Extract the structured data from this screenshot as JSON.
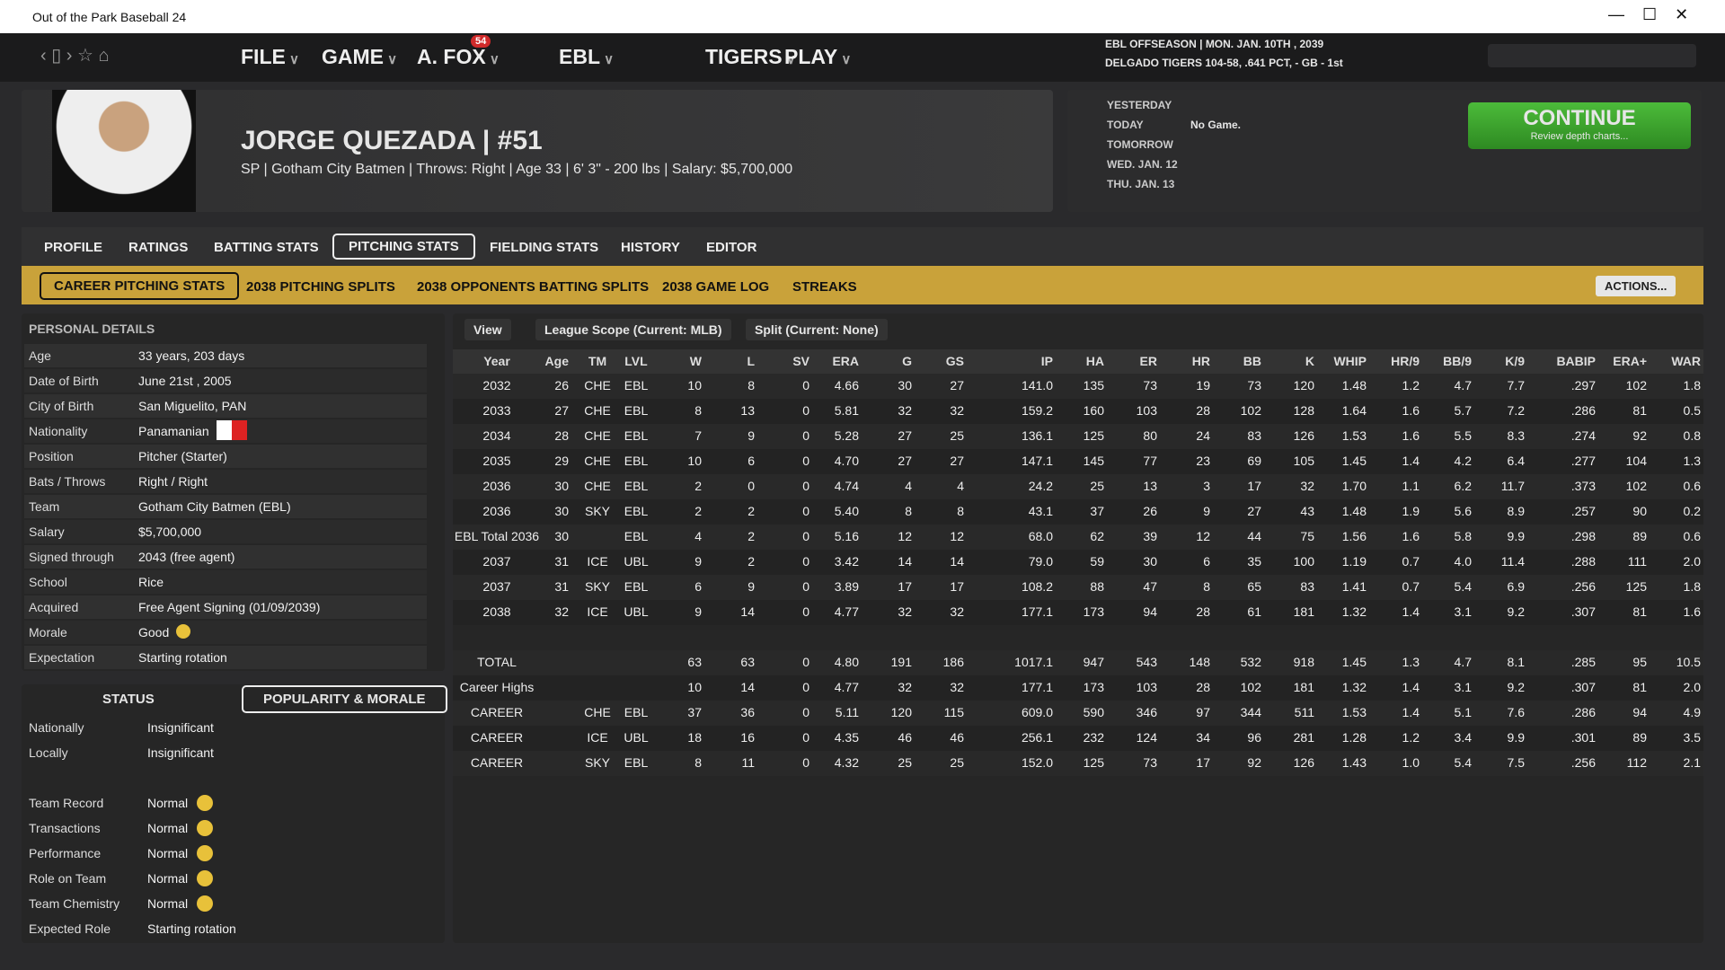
{
  "window": {
    "title": "Out of the Park Baseball 24"
  },
  "nav": {
    "menus": [
      "FILE",
      "GAME",
      "A. FOX",
      "EBL",
      "TIGERS",
      "PLAY"
    ],
    "badge": "54",
    "status_line1": "EBL OFFSEASON  |  MON. JAN. 10TH , 2039",
    "status_line2": "DELGADO TIGERS  104-58, .641 PCT, - GB - 1st"
  },
  "player": {
    "name": "JORGE QUEZADA  |  #51",
    "info": "SP | Gotham City Batmen  |  Throws: Right  |  Age 33  |  6' 3\" - 200 lbs  |  Salary: $5,700,000"
  },
  "schedule": {
    "days": [
      {
        "day": "YESTERDAY"
      },
      {
        "day": "TODAY",
        "note": "No Game."
      },
      {
        "day": "TOMORROW"
      },
      {
        "day": "WED. JAN. 12"
      },
      {
        "day": "THU. JAN. 13"
      }
    ],
    "continue": "CONTINUE",
    "continue_sub": "Review depth charts..."
  },
  "tabs": [
    "PROFILE",
    "RATINGS",
    "BATTING STATS",
    "PITCHING STATS",
    "FIELDING STATS",
    "HISTORY",
    "EDITOR"
  ],
  "subtabs": [
    "CAREER PITCHING STATS",
    "2038 PITCHING SPLITS",
    "2038 OPPONENTS BATTING SPLITS",
    "2038 GAME LOG",
    "STREAKS"
  ],
  "actions": "ACTIONS...",
  "personal": {
    "title": "PERSONAL DETAILS",
    "rows": [
      [
        "Age",
        "33 years, 203 days"
      ],
      [
        "Date of Birth",
        "June 21st , 2005"
      ],
      [
        "City of Birth",
        "San Miguelito, PAN"
      ],
      [
        "Nationality",
        "Panamanian"
      ],
      [
        "Position",
        "Pitcher (Starter)"
      ],
      [
        "Bats / Throws",
        "Right / Right"
      ],
      [
        "Team",
        "Gotham City Batmen (EBL)"
      ],
      [
        "Salary",
        "$5,700,000"
      ],
      [
        "Signed through",
        "2043 (free agent)"
      ],
      [
        "School",
        "Rice"
      ],
      [
        "Acquired",
        "Free Agent Signing (01/09/2039)"
      ],
      [
        "Morale",
        "Good"
      ],
      [
        "Expectation",
        "Starting rotation"
      ]
    ]
  },
  "status": {
    "tabs": [
      "STATUS",
      "POPULARITY & MORALE"
    ],
    "popularity": [
      [
        "Nationally",
        "Insignificant"
      ],
      [
        "Locally",
        "Insignificant"
      ]
    ],
    "morale": [
      [
        "Team Record",
        "Normal"
      ],
      [
        "Transactions",
        "Normal"
      ],
      [
        "Performance",
        "Normal"
      ],
      [
        "Role on Team",
        "Normal"
      ],
      [
        "Team Chemistry",
        "Normal"
      ],
      [
        "Expected Role",
        "Starting rotation"
      ]
    ]
  },
  "filters": [
    "View",
    "League Scope (Current: MLB)",
    "Split (Current: None)"
  ],
  "table": {
    "columns": [
      "Year",
      "Age",
      "TM",
      "LVL",
      "W",
      "L",
      "SV",
      "ERA",
      "G",
      "GS",
      "IP",
      "HA",
      "ER",
      "HR",
      "BB",
      "K",
      "WHIP",
      "HR/9",
      "BB/9",
      "K/9",
      "BABIP",
      "ERA+",
      "WAR"
    ],
    "rows": [
      [
        "2032",
        "26",
        "CHE",
        "EBL",
        "10",
        "8",
        "0",
        "4.66",
        "30",
        "27",
        "141.0",
        "135",
        "73",
        "19",
        "73",
        "120",
        "1.48",
        "1.2",
        "4.7",
        "7.7",
        ".297",
        "102",
        "1.8"
      ],
      [
        "2033",
        "27",
        "CHE",
        "EBL",
        "8",
        "13",
        "0",
        "5.81",
        "32",
        "32",
        "159.2",
        "160",
        "103",
        "28",
        "102",
        "128",
        "1.64",
        "1.6",
        "5.7",
        "7.2",
        ".286",
        "81",
        "0.5"
      ],
      [
        "2034",
        "28",
        "CHE",
        "EBL",
        "7",
        "9",
        "0",
        "5.28",
        "27",
        "25",
        "136.1",
        "125",
        "80",
        "24",
        "83",
        "126",
        "1.53",
        "1.6",
        "5.5",
        "8.3",
        ".274",
        "92",
        "0.8"
      ],
      [
        "2035",
        "29",
        "CHE",
        "EBL",
        "10",
        "6",
        "0",
        "4.70",
        "27",
        "27",
        "147.1",
        "145",
        "77",
        "23",
        "69",
        "105",
        "1.45",
        "1.4",
        "4.2",
        "6.4",
        ".277",
        "104",
        "1.3"
      ],
      [
        "2036",
        "30",
        "CHE",
        "EBL",
        "2",
        "0",
        "0",
        "4.74",
        "4",
        "4",
        "24.2",
        "25",
        "13",
        "3",
        "17",
        "32",
        "1.70",
        "1.1",
        "6.2",
        "11.7",
        ".373",
        "102",
        "0.6"
      ],
      [
        "2036",
        "30",
        "SKY",
        "EBL",
        "2",
        "2",
        "0",
        "5.40",
        "8",
        "8",
        "43.1",
        "37",
        "26",
        "9",
        "27",
        "43",
        "1.48",
        "1.9",
        "5.6",
        "8.9",
        ".257",
        "90",
        "0.2"
      ],
      [
        "EBL Total 2036",
        "30",
        null,
        "EBL",
        "4",
        "2",
        "0",
        "5.16",
        "12",
        "12",
        "68.0",
        "62",
        "39",
        "12",
        "44",
        "75",
        "1.56",
        "1.6",
        "5.8",
        "9.9",
        ".298",
        "89",
        "0.6"
      ],
      [
        "2037",
        "31",
        "ICE",
        "UBL",
        "9",
        "2",
        "0",
        "3.42",
        "14",
        "14",
        "79.0",
        "59",
        "30",
        "6",
        "35",
        "100",
        "1.19",
        "0.7",
        "4.0",
        "11.4",
        ".288",
        "111",
        "2.0"
      ],
      [
        "2037",
        "31",
        "SKY",
        "EBL",
        "6",
        "9",
        "0",
        "3.89",
        "17",
        "17",
        "108.2",
        "88",
        "47",
        "8",
        "65",
        "83",
        "1.41",
        "0.7",
        "5.4",
        "6.9",
        ".256",
        "125",
        "1.8"
      ],
      [
        "2038",
        "32",
        "ICE",
        "UBL",
        "9",
        "14",
        "0",
        "4.77",
        "32",
        "32",
        "177.1",
        "173",
        "94",
        "28",
        "61",
        "181",
        "1.32",
        "1.4",
        "3.1",
        "9.2",
        ".307",
        "81",
        "1.6"
      ]
    ],
    "summary_rows": [
      [
        "TOTAL",
        null,
        null,
        null,
        "63",
        "63",
        "0",
        "4.80",
        "191",
        "186",
        "1017.1",
        "947",
        "543",
        "148",
        "532",
        "918",
        "1.45",
        "1.3",
        "4.7",
        "8.1",
        ".285",
        "95",
        "10.5"
      ],
      [
        "Career Highs",
        null,
        null,
        null,
        "10",
        "14",
        "0",
        "4.77",
        "32",
        "32",
        "177.1",
        "173",
        "103",
        "28",
        "102",
        "181",
        "1.32",
        "1.4",
        "3.1",
        "9.2",
        ".307",
        "81",
        "2.0"
      ],
      [
        "CAREER",
        null,
        "CHE",
        "EBL",
        "37",
        "36",
        "0",
        "5.11",
        "120",
        "115",
        "609.0",
        "590",
        "346",
        "97",
        "344",
        "511",
        "1.53",
        "1.4",
        "5.1",
        "7.6",
        ".286",
        "94",
        "4.9"
      ],
      [
        "CAREER",
        null,
        "ICE",
        "UBL",
        "18",
        "16",
        "0",
        "4.35",
        "46",
        "46",
        "256.1",
        "232",
        "124",
        "34",
        "96",
        "281",
        "1.28",
        "1.2",
        "3.4",
        "9.9",
        ".301",
        "89",
        "3.5"
      ],
      [
        "CAREER",
        null,
        "SKY",
        "EBL",
        "8",
        "11",
        "0",
        "4.32",
        "25",
        "25",
        "152.0",
        "125",
        "73",
        "17",
        "92",
        "126",
        "1.43",
        "1.0",
        "5.4",
        "7.5",
        ".256",
        "112",
        "2.1"
      ]
    ]
  }
}
